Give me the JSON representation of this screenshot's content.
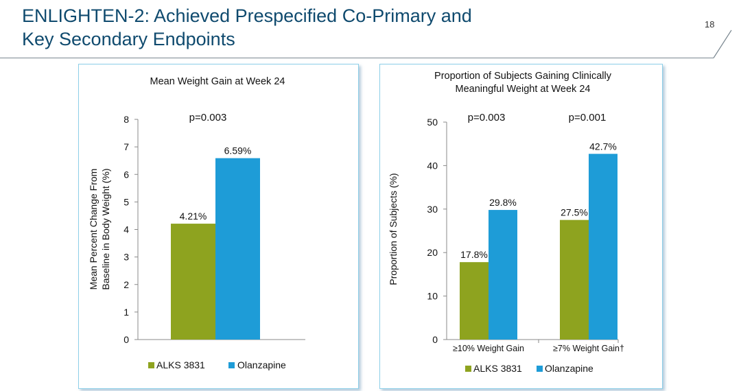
{
  "slide": {
    "title_line1": "ENLIGHTEN-2: Achieved Prespecified Co-Primary and",
    "title_line2": "Key Secondary Endpoints",
    "page_number": "18"
  },
  "colors": {
    "alks": "#8ea31f",
    "olanzapine": "#1e9cd7",
    "title": "#0f4a6e",
    "panel_border": "#8ccfe8"
  },
  "chart_data": [
    {
      "type": "bar",
      "title": "Mean Weight Gain at Week 24",
      "ylabel": [
        "Mean Percent Change From",
        "Baseline in Body Weight (%)"
      ],
      "xlabel": "",
      "ylim": [
        0,
        8
      ],
      "yticks": [
        "0",
        "1",
        "2",
        "3",
        "4",
        "5",
        "6",
        "7",
        "8"
      ],
      "categories": [
        ""
      ],
      "series": [
        {
          "name": "ALKS 3831",
          "values": [
            4.21
          ],
          "labels": [
            "4.21%"
          ]
        },
        {
          "name": "Olanzapine",
          "values": [
            6.59
          ],
          "labels": [
            "6.59%"
          ]
        }
      ],
      "annotations": [
        "p=0.003"
      ],
      "legend": "bottom",
      "grid": false
    },
    {
      "type": "bar",
      "title": [
        "Proportion of Subjects Gaining Clinically",
        "Meaningful Weight at Week 24"
      ],
      "ylabel": [
        "Proportion of Subjects (%)"
      ],
      "xlabel": "",
      "ylim": [
        0,
        50
      ],
      "yticks": [
        "0",
        "10",
        "20",
        "30",
        "40",
        "50"
      ],
      "categories": [
        "≥10% Weight Gain",
        "≥7% Weight Gain†"
      ],
      "series": [
        {
          "name": "ALKS 3831",
          "values": [
            17.8,
            27.5
          ],
          "labels": [
            "17.8%",
            "27.5%"
          ]
        },
        {
          "name": "Olanzapine",
          "values": [
            29.8,
            42.7
          ],
          "labels": [
            "29.8%",
            "42.7%"
          ]
        }
      ],
      "annotations": [
        "p=0.003",
        "p=0.001"
      ],
      "legend": "bottom",
      "grid": false
    }
  ]
}
